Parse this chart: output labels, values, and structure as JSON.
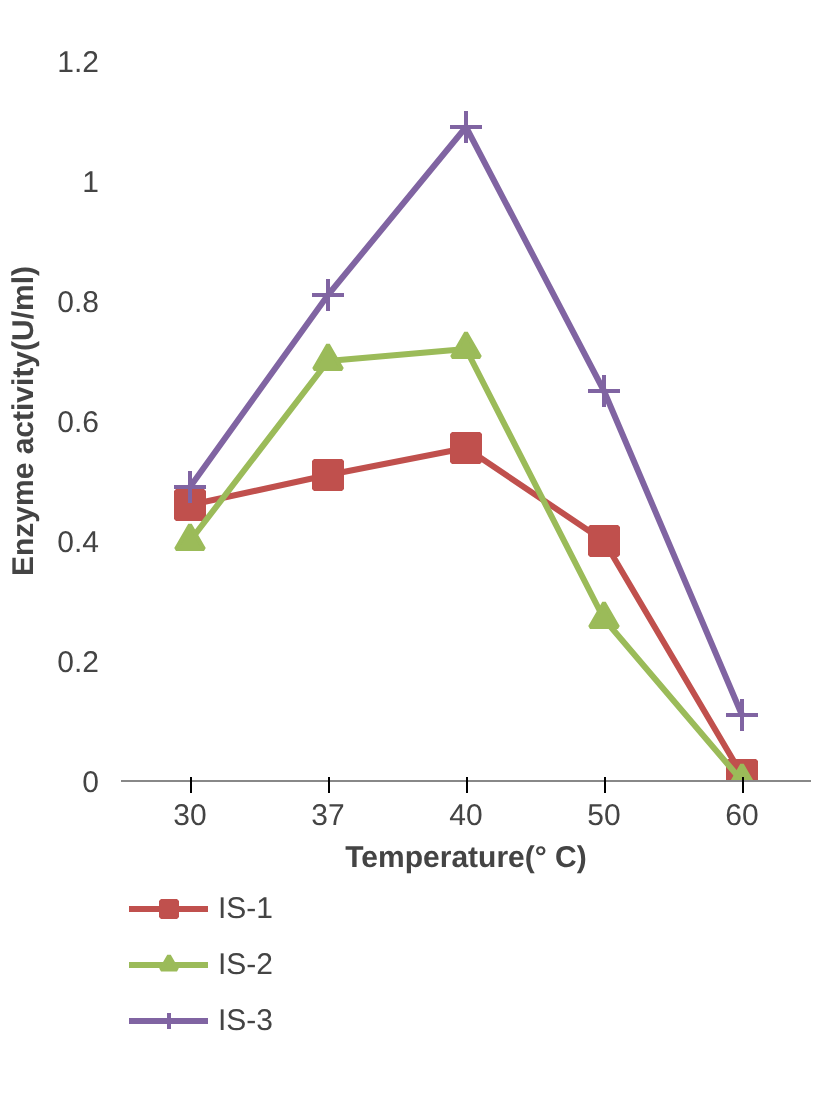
{
  "chart_data": {
    "type": "line",
    "xlabel": "Temperature(° C)",
    "ylabel": "Enzyme activity(U/ml)",
    "categories": [
      "30",
      "37",
      "40",
      "50",
      "60"
    ],
    "series": [
      {
        "name": "IS-1",
        "color": "#c0504d",
        "marker": "square",
        "values": [
          0.46,
          0.51,
          0.555,
          0.4,
          0.01
        ]
      },
      {
        "name": "IS-2",
        "color": "#9bbb59",
        "marker": "triangle",
        "values": [
          0.4,
          0.7,
          0.72,
          0.27,
          0.0
        ]
      },
      {
        "name": "IS-3",
        "color": "#8064a2",
        "marker": "cross",
        "values": [
          0.49,
          0.81,
          1.09,
          0.65,
          0.11
        ]
      }
    ],
    "ylim": [
      0,
      1.2
    ],
    "yticks": [
      0,
      {
        "value": 0.2,
        "label": "0.2"
      },
      {
        "value": 0.4,
        "label": "0.4"
      },
      {
        "value": 0.6,
        "label": "0.6"
      },
      {
        "value": 0.8,
        "label": "0.8"
      },
      1,
      {
        "value": 1.2,
        "label": "1.2"
      }
    ],
    "grid": false,
    "legend": "bottom left",
    "line_style": "solid"
  }
}
